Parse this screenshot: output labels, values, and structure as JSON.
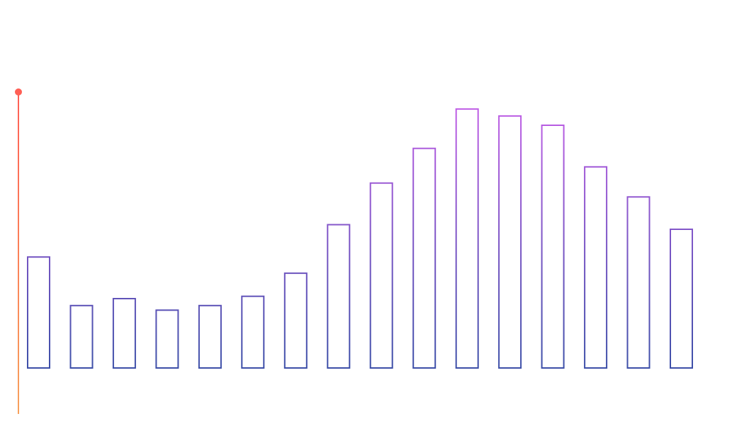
{
  "chart_data": {
    "type": "bar",
    "style": "outlined",
    "values": [
      48,
      27,
      30,
      25,
      27,
      31,
      41,
      62,
      80,
      95,
      112,
      109,
      105,
      87,
      74,
      60
    ],
    "ylim": [
      0,
      120
    ],
    "grid": false,
    "legend": "none",
    "colors": {
      "bar_top": "#c45ee8",
      "bar_bottom": "#3d4fa8",
      "axis_top": "#ff5f55",
      "axis_bottom": "#f7a15c"
    }
  }
}
